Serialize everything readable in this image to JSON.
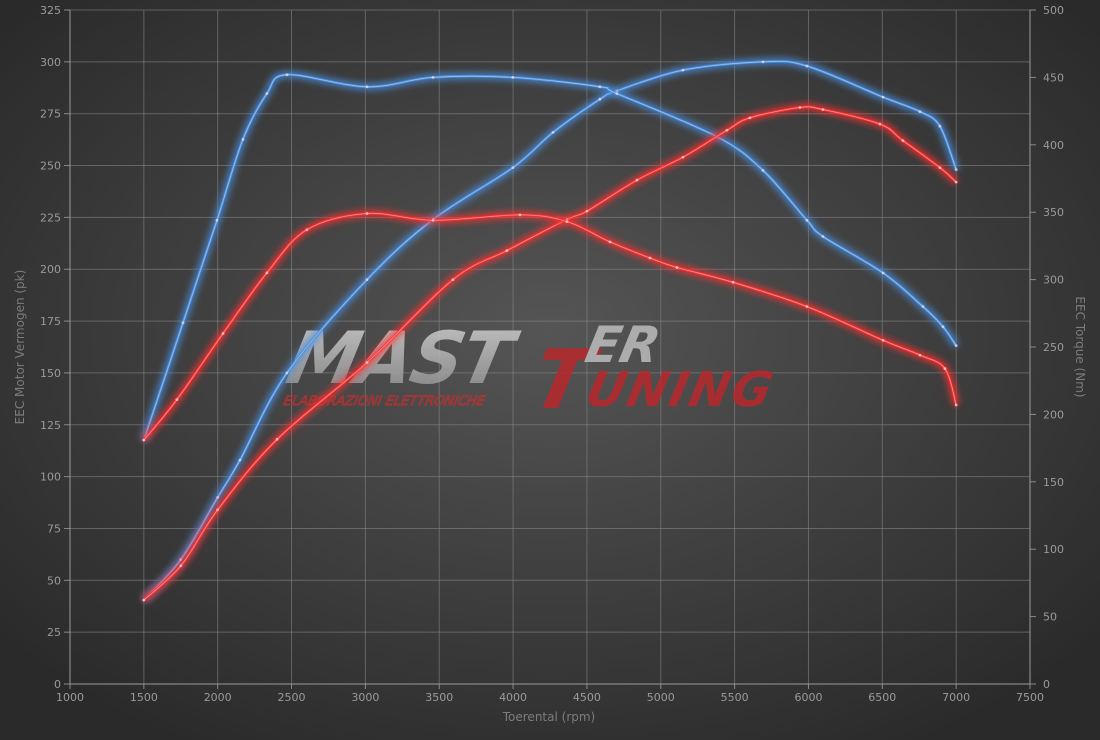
{
  "chart_data": {
    "type": "line",
    "title": "",
    "xlabel": "Toerental (rpm)",
    "ylabel": "EEC Motor Vermogen (pk)",
    "y2label": "EEC Torque (Nm)",
    "xlim": [
      1000,
      7500
    ],
    "ylim": [
      0,
      325
    ],
    "y2lim": [
      0,
      500
    ],
    "xticks": [
      1000,
      1500,
      2000,
      2500,
      3000,
      3500,
      4000,
      4500,
      5000,
      5500,
      6000,
      6500,
      7000,
      7500
    ],
    "yticks": [
      0,
      25,
      50,
      75,
      100,
      125,
      150,
      175,
      200,
      225,
      250,
      275,
      300,
      325
    ],
    "y2ticks": [
      0,
      50,
      100,
      150,
      200,
      250,
      300,
      350,
      400,
      450,
      500
    ],
    "grid": true,
    "legend": "none",
    "watermark": {
      "main": "MASTER",
      "accent": "TUNING",
      "sub": "ELABORAZIONI ELETTRONICHE"
    },
    "series": [
      {
        "axis": "left",
        "color": "#4a8fe0",
        "x": [
          1500,
          1750,
          2000,
          2151,
          2469,
          3011,
          3458,
          3999,
          4270,
          4588,
          4703,
          5150,
          5692,
          5990,
          6505,
          6755,
          6890,
          7000
        ],
        "y": [
          40.5,
          60,
          90,
          108,
          150,
          195,
          224,
          249,
          266,
          282,
          286,
          296,
          300,
          298,
          283,
          276,
          269,
          248
        ]
      },
      {
        "axis": "right",
        "color": "#4a8fe0",
        "x": [
          1500,
          1765,
          1995,
          2171,
          2333,
          2469,
          3011,
          3458,
          3999,
          4588,
          4703,
          5380,
          5692,
          5990,
          6098,
          6505,
          6775,
          6911,
          7000
        ],
        "y": [
          181,
          268,
          344,
          404,
          438,
          452,
          443,
          450,
          450,
          443,
          438,
          406,
          381,
          344,
          332,
          305,
          280,
          265,
          251
        ]
      },
      {
        "axis": "left",
        "color": "#ff3030",
        "x": [
          1500,
          1750,
          2000,
          2402,
          3011,
          3593,
          3958,
          4365,
          4500,
          4839,
          5150,
          5448,
          5604,
          5942,
          6098,
          6484,
          6640,
          6890,
          7000
        ],
        "y": [
          40.5,
          57,
          84,
          118,
          155,
          195,
          209,
          224,
          228,
          243,
          254,
          267,
          273,
          278,
          277,
          270,
          262,
          249,
          242
        ]
      },
      {
        "axis": "right",
        "color": "#ff3030",
        "x": [
          1500,
          1724,
          2036,
          2333,
          2604,
          3011,
          3458,
          4047,
          4365,
          4656,
          4927,
          5110,
          5489,
          5990,
          6505,
          6755,
          6924,
          7000
        ],
        "y": [
          181,
          211,
          260,
          305,
          337,
          349,
          344,
          348,
          343,
          328,
          316,
          309,
          298,
          280,
          255,
          244,
          234,
          207
        ]
      }
    ]
  }
}
